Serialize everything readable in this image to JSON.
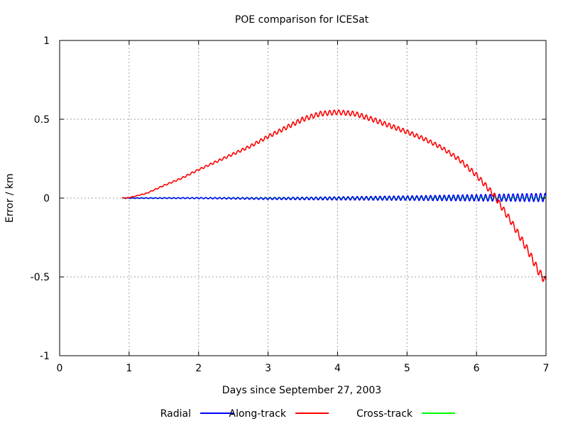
{
  "chart_data": {
    "type": "line",
    "title": "POE comparison for ICESat",
    "xlabel": "Days since September 27, 2003",
    "ylabel": "Error / km",
    "xlim": [
      0,
      7
    ],
    "ylim": [
      -1,
      1
    ],
    "xticks": [
      0,
      1,
      2,
      3,
      4,
      5,
      6,
      7
    ],
    "yticks": [
      1,
      0.5,
      0,
      -0.5,
      -1
    ],
    "xtick_labels": [
      "0",
      "1",
      "2",
      "3",
      "4",
      "5",
      "6",
      "7"
    ],
    "ytick_labels": [
      "1",
      "0.5",
      "0",
      "-0.5",
      "-1"
    ],
    "grid": true,
    "legend_position": "bottom",
    "start_day": 0.9,
    "oscillation_period_days": 0.066,
    "series": [
      {
        "name": "Radial",
        "color": "#0000ff",
        "oscillation_amplitude": [
          [
            0.9,
            0.001
          ],
          [
            3.0,
            0.006
          ],
          [
            4.0,
            0.01
          ],
          [
            5.0,
            0.014
          ],
          [
            6.0,
            0.02
          ],
          [
            7.0,
            0.026
          ]
        ],
        "values": [
          [
            0.9,
            0.0
          ],
          [
            2.0,
            0.0
          ],
          [
            3.0,
            -0.003
          ],
          [
            4.0,
            -0.002
          ],
          [
            5.0,
            0.0
          ],
          [
            6.0,
            0.002
          ],
          [
            7.0,
            0.004
          ]
        ]
      },
      {
        "name": "Along-track",
        "color": "#ff0000",
        "oscillation_amplitude": [
          [
            0.9,
            0.001
          ],
          [
            1.5,
            0.004
          ],
          [
            2.5,
            0.008
          ],
          [
            3.5,
            0.015
          ],
          [
            4.5,
            0.015
          ],
          [
            5.5,
            0.012
          ],
          [
            6.5,
            0.02
          ],
          [
            7.0,
            0.025
          ]
        ],
        "values": [
          [
            0.9,
            0.0
          ],
          [
            1.0,
            0.003
          ],
          [
            1.25,
            0.03
          ],
          [
            1.5,
            0.08
          ],
          [
            1.75,
            0.125
          ],
          [
            2.0,
            0.18
          ],
          [
            2.25,
            0.23
          ],
          [
            2.5,
            0.28
          ],
          [
            2.75,
            0.33
          ],
          [
            3.0,
            0.39
          ],
          [
            3.25,
            0.445
          ],
          [
            3.5,
            0.5
          ],
          [
            3.75,
            0.535
          ],
          [
            4.0,
            0.545
          ],
          [
            4.25,
            0.535
          ],
          [
            4.5,
            0.5
          ],
          [
            4.75,
            0.46
          ],
          [
            5.0,
            0.42
          ],
          [
            5.25,
            0.375
          ],
          [
            5.5,
            0.32
          ],
          [
            5.75,
            0.245
          ],
          [
            6.0,
            0.145
          ],
          [
            6.25,
            0.02
          ],
          [
            6.5,
            -0.15
          ],
          [
            6.75,
            -0.34
          ],
          [
            6.9,
            -0.47
          ],
          [
            7.0,
            -0.53
          ]
        ]
      },
      {
        "name": "Cross-track",
        "color": "#00ff00",
        "oscillation_amplitude": [
          [
            0.9,
            0.003
          ],
          [
            3.0,
            0.004
          ],
          [
            5.0,
            0.005
          ],
          [
            7.0,
            0.006
          ]
        ],
        "values": [
          [
            0.9,
            0.0
          ],
          [
            3.0,
            0.0
          ],
          [
            5.0,
            0.0
          ],
          [
            7.0,
            0.0
          ]
        ]
      }
    ]
  }
}
